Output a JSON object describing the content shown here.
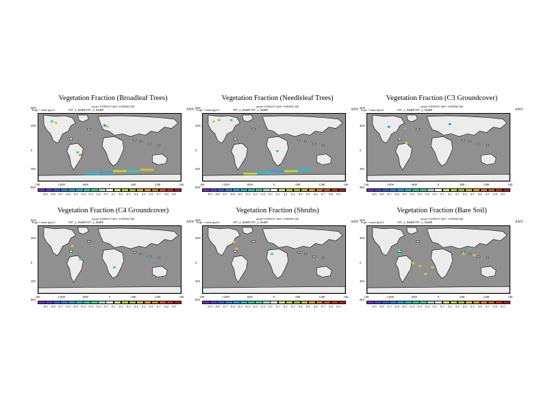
{
  "panels": [
    {
      "title": "Vegetation Fraction (Broadleaf Trees)",
      "subtitle": "mean= 0.0392317 diff= -0.00392(?)40",
      "expt": "Expt = tamt-tpyti1",
      "expt_id": "097_2_MaBP  097_2_MaBP",
      "season": "ANN"
    },
    {
      "title": "Vegetation Fraction (Needleleaf Trees)",
      "subtitle": "mean= 0.0392317 diff= -0.00392(?)40",
      "expt": "Expt = tamt-tpyti1",
      "expt_id": "097_2_MaBP  097_2_MaBP",
      "season": "ANN"
    },
    {
      "title": "Vegetation Fraction (C3 Groundcover)",
      "subtitle": "mean= 0.0392317 diff= -0.00392(?)40",
      "expt": "Expt = tamt-tpyti1",
      "expt_id": "097_2_MaBP  097_2_MaBP",
      "season": "ANN"
    },
    {
      "title": "Vegetation Fraction (C4 Groundcover)",
      "subtitle": "mean= 0.0392317 diff= -0.00392(?)40",
      "expt": "Expt = tamt-tpyti1",
      "expt_id": "097_2_MaBP  097_2_MaBP",
      "season": "ANN"
    },
    {
      "title": "Vegetation Fraction (Shrubs)",
      "subtitle": "mean= 0.0392317 diff= -0.00392(?)40",
      "expt": "Expt = tamt-tpyti1",
      "expt_id": "097_2_MaBP  097_2_MaBP",
      "season": "ANN"
    },
    {
      "title": "Vegetation Fraction (Bare Soil)",
      "subtitle": "mean= 0.0392317 diff= -0.00392(?)40",
      "expt": "Expt = tamt-tpyti1",
      "expt_id": "097_2_MaBP  097_2_MaBP",
      "season": "ANN"
    }
  ],
  "lat_labels": [
    "60N",
    "40N",
    "0",
    "40S",
    "80S"
  ],
  "lon_labels": [
    "180",
    "120W",
    "60W",
    "0",
    "60E",
    "120E",
    "180"
  ],
  "colorbar": {
    "labels": [
      "-0.9",
      "-0.8",
      "-0.7",
      "-0.6",
      "-0.5",
      "-0.4",
      "-0.3",
      "-0.2",
      "-0.1",
      "0.1",
      "0.2",
      "0.3",
      "0.4",
      "0.5",
      "0.6",
      "0.7",
      "0.8",
      "0.9"
    ],
    "colors": [
      "#7b2fd0",
      "#5a44e0",
      "#3a62ee",
      "#2e86f0",
      "#23a7e8",
      "#1fc3d6",
      "#2ad0b0",
      "#3fd78a",
      "#9de6c8",
      "#ffffff",
      "#d8ec6a",
      "#c2d82c",
      "#b0c91e",
      "#e0c21c",
      "#f0a21a",
      "#ef7c18",
      "#e85a16",
      "#d8321a",
      "#c01c20"
    ]
  },
  "colors": {
    "ocean": "#909090",
    "land": "#ececec",
    "coast": "#000000"
  }
}
